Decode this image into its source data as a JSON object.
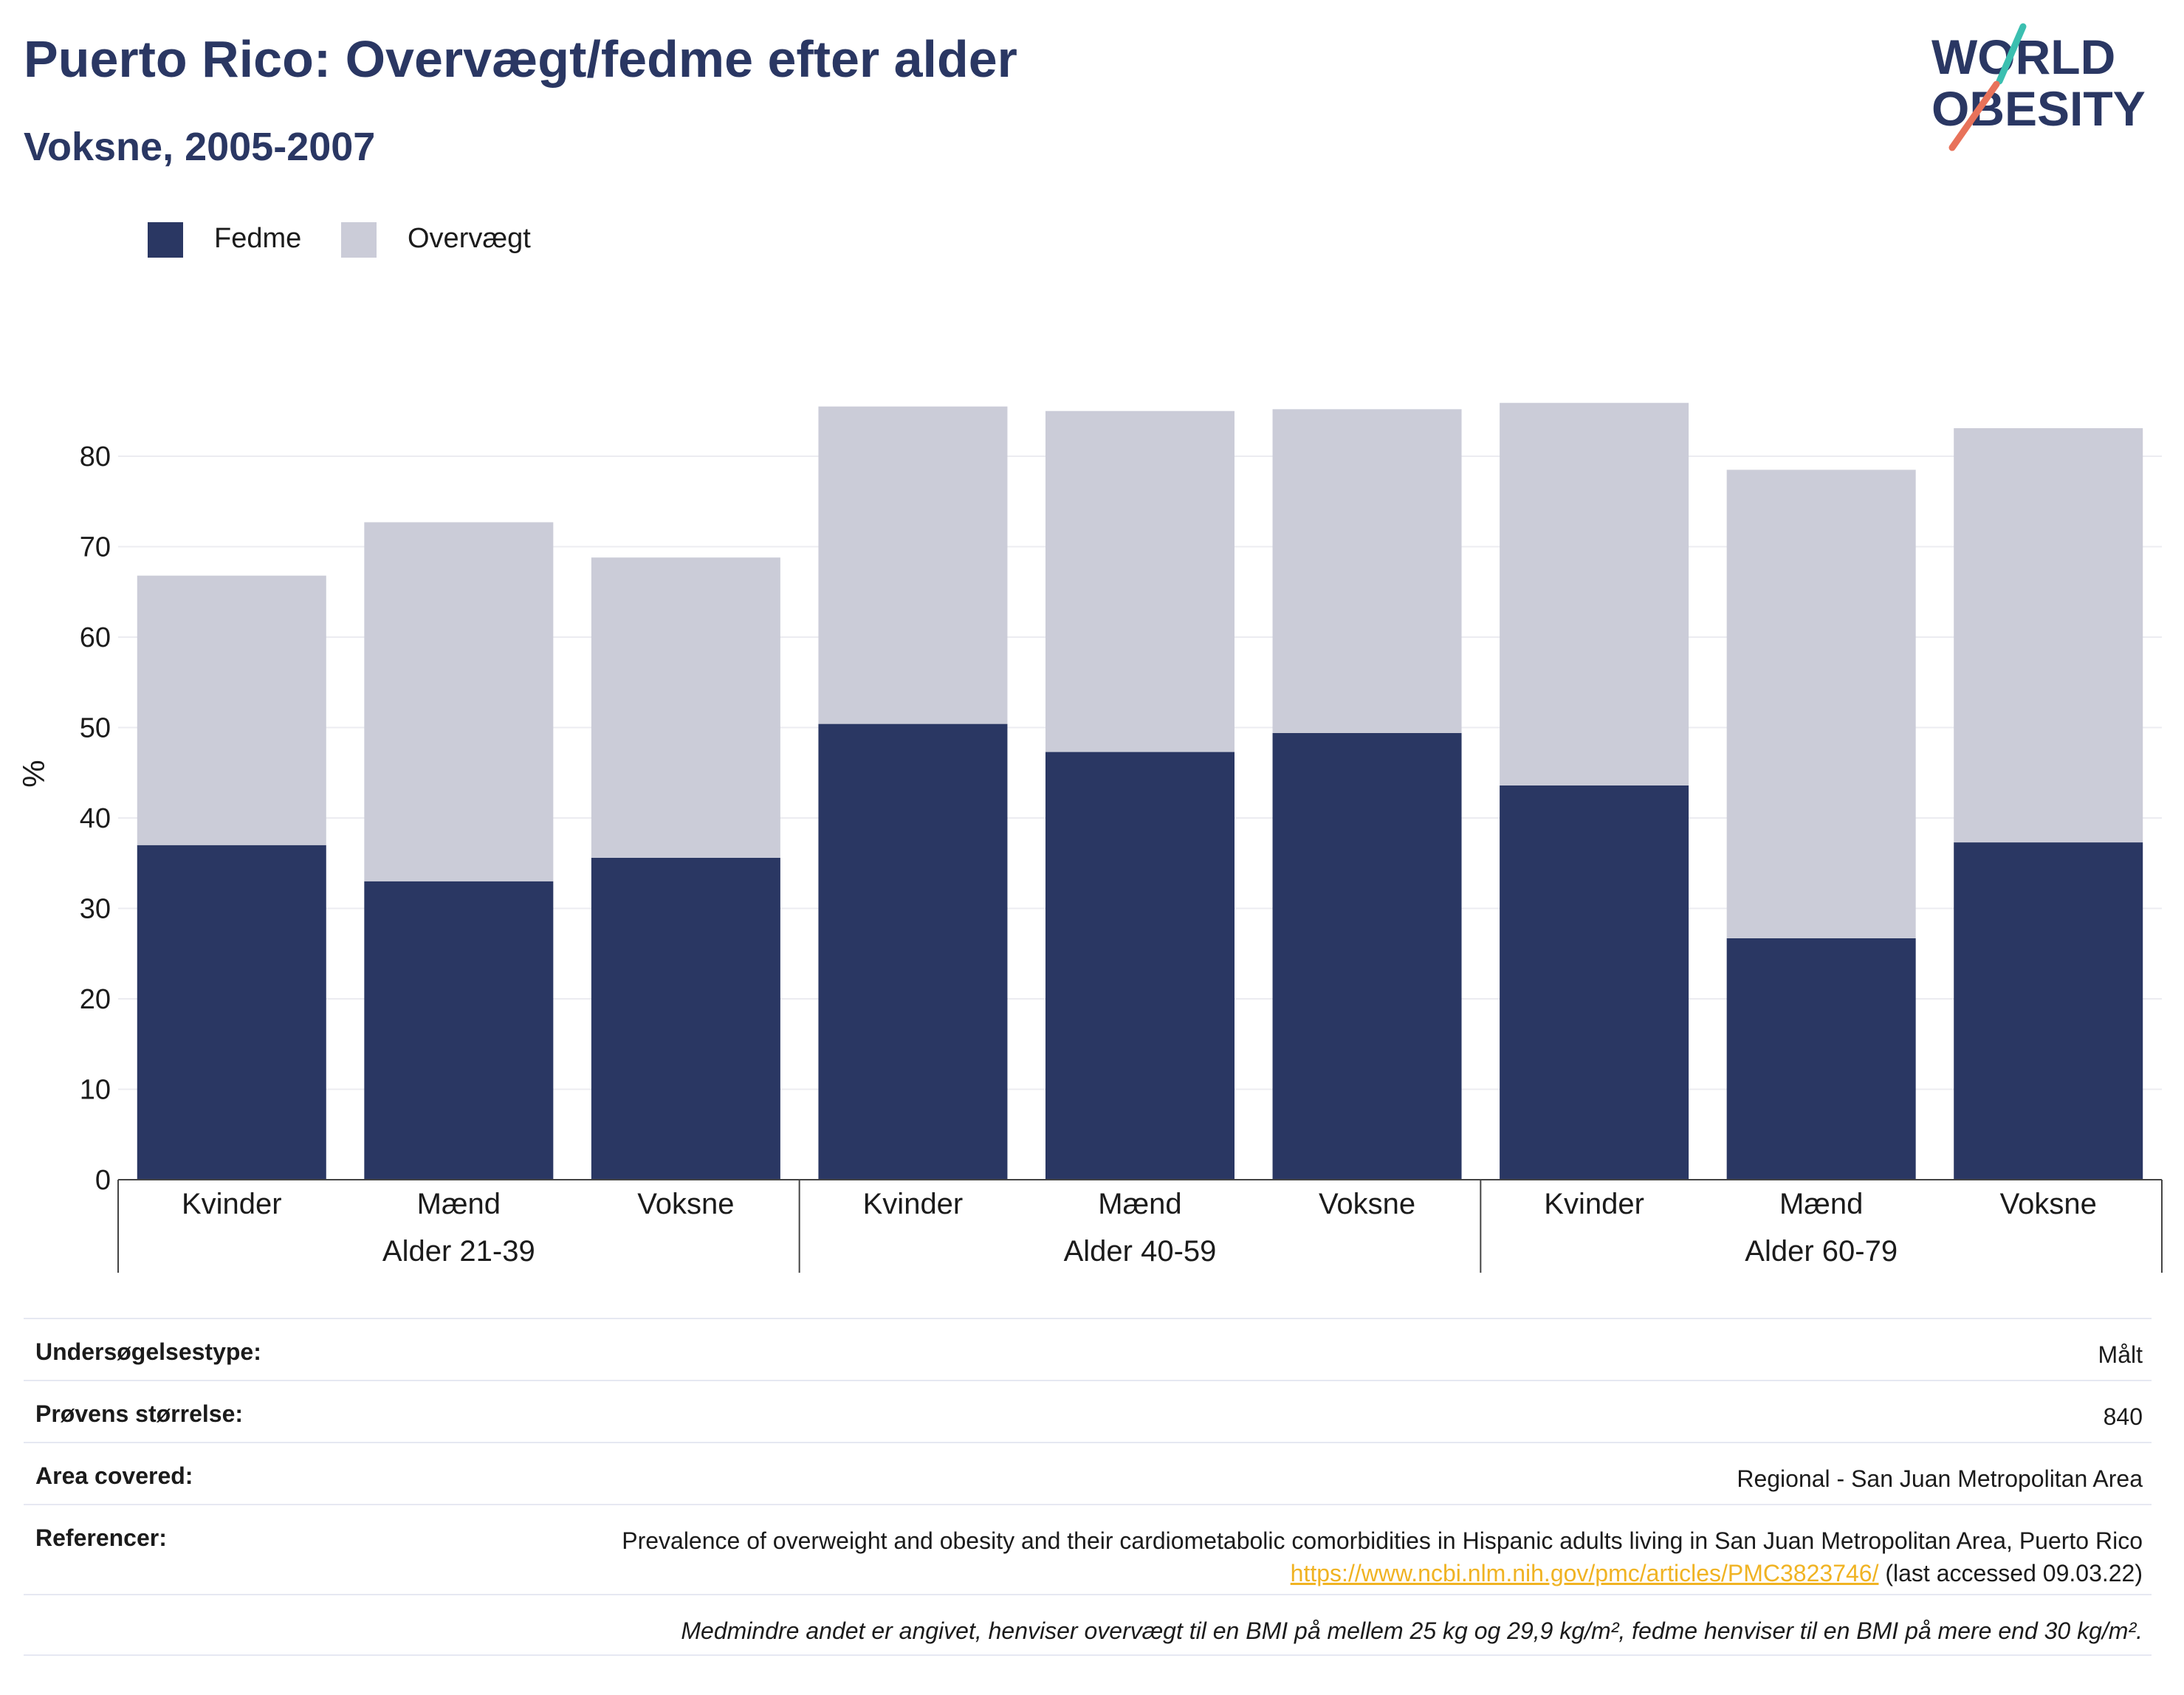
{
  "title": "Puerto Rico: Overvægt/fedme efter alder",
  "subtitle": "Voksne, 2005-2007",
  "logo": {
    "line1": "WORLD",
    "line2": "OBESITY"
  },
  "colors": {
    "obesity": "#2a3763",
    "overweight": "#cbccd8",
    "title": "#2a3763",
    "link": "#f0b323",
    "accent_teal": "#3bbfb0",
    "accent_coral": "#e8725a"
  },
  "legend": [
    {
      "label": "Fedme",
      "color": "#2a3763"
    },
    {
      "label": "Overvægt",
      "color": "#cbccd8"
    }
  ],
  "chart_data": {
    "type": "bar",
    "stacked": true,
    "ylabel": "%",
    "ylim": [
      0,
      90
    ],
    "yticks": [
      0,
      10,
      20,
      30,
      40,
      50,
      60,
      70,
      80
    ],
    "grid": true,
    "legend_position": "top-left",
    "groups": [
      "Alder 21-39",
      "Alder 40-59",
      "Alder 60-79"
    ],
    "categories": [
      "Kvinder",
      "Mænd",
      "Voksne",
      "Kvinder",
      "Mænd",
      "Voksne",
      "Kvinder",
      "Mænd",
      "Voksne"
    ],
    "series": [
      {
        "name": "Fedme",
        "values": [
          37.0,
          33.0,
          35.6,
          50.4,
          47.3,
          49.4,
          43.6,
          26.7,
          37.3
        ]
      },
      {
        "name": "Overvægt",
        "values": [
          29.8,
          39.7,
          33.2,
          35.1,
          37.7,
          35.8,
          42.3,
          51.8,
          45.8
        ]
      }
    ]
  },
  "info": {
    "survey_type_label": "Undersøgelsestype:",
    "survey_type_value": "Målt",
    "sample_size_label": "Prøvens størrelse:",
    "sample_size_value": "840",
    "area_label": "Area covered:",
    "area_value": "Regional - San Juan Metropolitan Area",
    "references_label": "Referencer:",
    "references_text": "Prevalence of overweight and obesity and their cardiometabolic comorbidities in Hispanic adults living in San Juan Metropolitan Area, Puerto Rico",
    "references_link": "https://www.ncbi.nlm.nih.gov/pmc/articles/PMC3823746/",
    "references_suffix": "(last accessed 09.03.22)",
    "note": "Medmindre andet er angivet, henviser overvægt til en BMI på mellem 25 kg og 29,9 kg/m², fedme henviser til en BMI på mere end 30 kg/m²."
  }
}
